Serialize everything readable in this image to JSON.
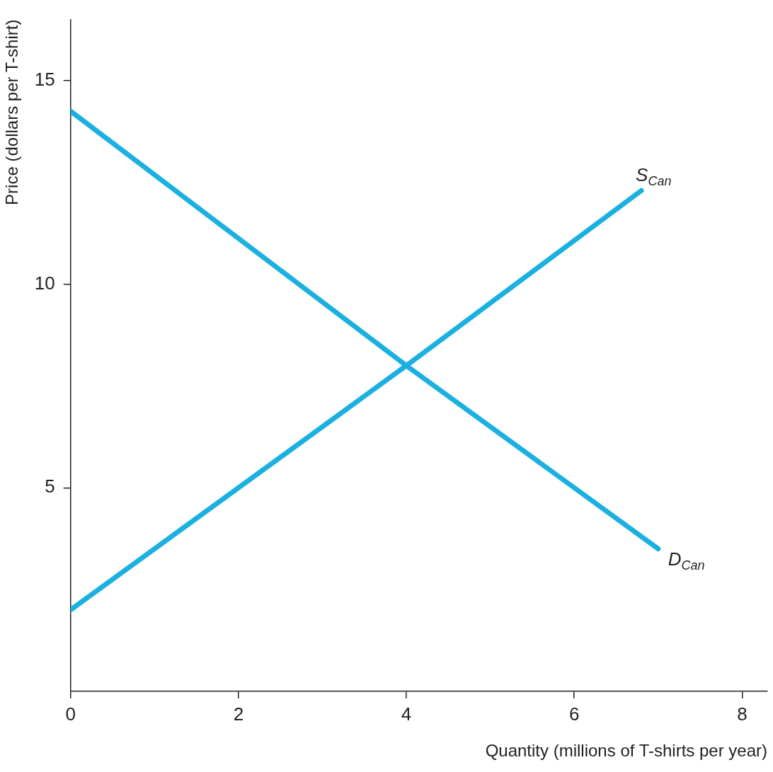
{
  "chart_data": {
    "type": "line",
    "xlabel": "Quantity (millions of T-shirts per year)",
    "ylabel": "Price (dollars per T-shirt)",
    "xlim": [
      0,
      8.3
    ],
    "ylim": [
      0,
      16.5
    ],
    "xticks": [
      0,
      2,
      4,
      6,
      8
    ],
    "yticks": [
      5,
      10,
      15
    ],
    "grid": false,
    "legend": false,
    "marker": "none",
    "line_style": "solid",
    "series": [
      {
        "name": "S$_{Can}$",
        "color": "#1ab0e0",
        "x": [
          0,
          4,
          6.8
        ],
        "values": [
          2,
          8,
          12.3
        ]
      },
      {
        "name": "D$_{Can}$",
        "color": "#1ab0e0",
        "x": [
          0,
          4,
          7
        ],
        "values": [
          14.25,
          8,
          3.5
        ]
      }
    ]
  }
}
